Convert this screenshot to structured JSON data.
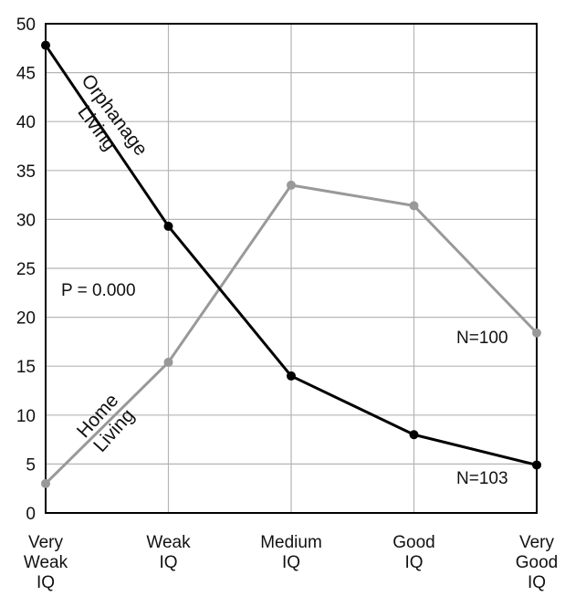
{
  "chart_data": {
    "type": "line",
    "categories": [
      [
        "Very",
        "Weak",
        "IQ"
      ],
      [
        "Weak",
        "IQ"
      ],
      [
        "Medium",
        "IQ"
      ],
      [
        "Good",
        "IQ"
      ],
      [
        "Very",
        "Good",
        "IQ"
      ]
    ],
    "ylim": [
      0,
      50
    ],
    "yticks": [
      0,
      5,
      10,
      15,
      20,
      25,
      30,
      35,
      40,
      45,
      50
    ],
    "grid": true,
    "series": [
      {
        "name": "Orphanage Living",
        "label_lines": [
          "Orphanage",
          "Living"
        ],
        "values": [
          47.8,
          29.3,
          14.0,
          8.0,
          4.9
        ],
        "color": "#000000",
        "n_label": "N=103"
      },
      {
        "name": "Home Living",
        "label_lines": [
          "Home",
          "Living"
        ],
        "values": [
          3.0,
          15.4,
          33.5,
          31.4,
          18.4
        ],
        "color": "#999999",
        "n_label": "N=100"
      }
    ],
    "annotations": {
      "p_value": "P = 0.000"
    }
  }
}
